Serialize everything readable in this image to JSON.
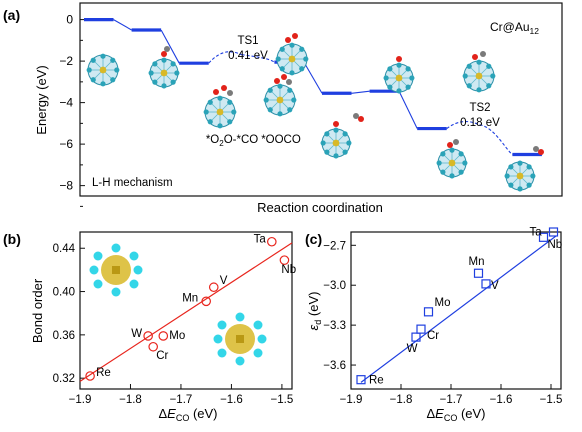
{
  "chart_data": [
    {
      "panel": "(a)",
      "type": "line",
      "title": "Cr@Au12",
      "title_parts": {
        "base": "Cr@Au",
        "sub": "12"
      },
      "xlabel": "Reaction coordination",
      "ylabel": "Energy (eV)",
      "ylim": [
        -8.5,
        0.8
      ],
      "yticks": [
        0,
        -2,
        -4,
        -6,
        -8
      ],
      "mechanism_label": "L-H mechanism",
      "series": [
        {
          "color": "#1f3fe0",
          "levels": [
            0.0,
            -0.5,
            -2.1,
            -1.69,
            -2.05,
            -3.55,
            -3.45,
            -5.25,
            -5.07,
            -6.5
          ],
          "line_styles": [
            "solid",
            "solid",
            "dashed",
            "dashed",
            "solid",
            "solid",
            "solid",
            "dashed",
            "dashed"
          ]
        }
      ],
      "annotations": [
        {
          "text": "TS1",
          "level_index": 3
        },
        {
          "text": "0.41 eV",
          "level_index": 3
        },
        {
          "text": "*O2O-*CO",
          "parts": [
            "*O",
            "2",
            "O-*CO"
          ],
          "level_index": 2
        },
        {
          "text": "*OOCO",
          "level_index": 4
        },
        {
          "text": "TS2",
          "level_index": 8
        },
        {
          "text": "0.18 eV",
          "level_index": 8
        }
      ]
    },
    {
      "panel": "(b)",
      "type": "scatter",
      "xlabel": "ΔE_CO (eV)",
      "ylabel": "Bond order",
      "xlim": [
        -1.9,
        -1.48
      ],
      "ylim": [
        0.31,
        0.455
      ],
      "xticks": [
        -1.9,
        -1.8,
        -1.7,
        -1.6,
        -1.5
      ],
      "yticks": [
        0.32,
        0.36,
        0.4,
        0.44
      ],
      "marker": "open-circle",
      "marker_color": "#e8261e",
      "fit_line": {
        "x": [
          -1.9,
          -1.48
        ],
        "y": [
          0.317,
          0.445
        ],
        "color": "#e8261e"
      },
      "points": [
        {
          "label": "Re",
          "x": -1.88,
          "y": 0.322
        },
        {
          "label": "W",
          "x": -1.765,
          "y": 0.359
        },
        {
          "label": "Cr",
          "x": -1.755,
          "y": 0.349
        },
        {
          "label": "Mo",
          "x": -1.735,
          "y": 0.359
        },
        {
          "label": "Mn",
          "x": -1.65,
          "y": 0.391
        },
        {
          "label": "V",
          "x": -1.635,
          "y": 0.404
        },
        {
          "label": "Ta",
          "x": -1.52,
          "y": 0.446
        },
        {
          "label": "Nb",
          "x": -1.495,
          "y": 0.429
        }
      ]
    },
    {
      "panel": "(c)",
      "type": "scatter",
      "xlabel": "ΔE_CO (eV)",
      "ylabel": "ε_d (eV)",
      "xlim": [
        -1.9,
        -1.48
      ],
      "ylim": [
        -3.78,
        -2.6
      ],
      "xticks": [
        -1.9,
        -1.8,
        -1.7,
        -1.6,
        -1.5
      ],
      "yticks": [
        -2.7,
        -3.0,
        -3.3,
        -3.6
      ],
      "marker": "open-square",
      "marker_color": "#1f3fe0",
      "fit_line": {
        "x": [
          -1.88,
          -1.49
        ],
        "y": [
          -3.73,
          -2.63
        ],
        "color": "#1f3fe0"
      },
      "points": [
        {
          "label": "Re",
          "x": -1.88,
          "y": -3.71
        },
        {
          "label": "W",
          "x": -1.77,
          "y": -3.39
        },
        {
          "label": "Cr",
          "x": -1.76,
          "y": -3.33
        },
        {
          "label": "Mo",
          "x": -1.745,
          "y": -3.2
        },
        {
          "label": "Mn",
          "x": -1.645,
          "y": -2.91
        },
        {
          "label": "V",
          "x": -1.63,
          "y": -2.99
        },
        {
          "label": "Ta",
          "x": -1.515,
          "y": -2.64
        },
        {
          "label": "Nb",
          "x": -1.495,
          "y": -2.6
        }
      ]
    }
  ],
  "colors": {
    "axis": "#111111",
    "red": "#e8261e",
    "blue": "#1f3fe0",
    "gold": "#d8b928",
    "teal": "#2aa3b8",
    "oxygen": "#e2231a",
    "carbon": "#7a7a7a"
  }
}
